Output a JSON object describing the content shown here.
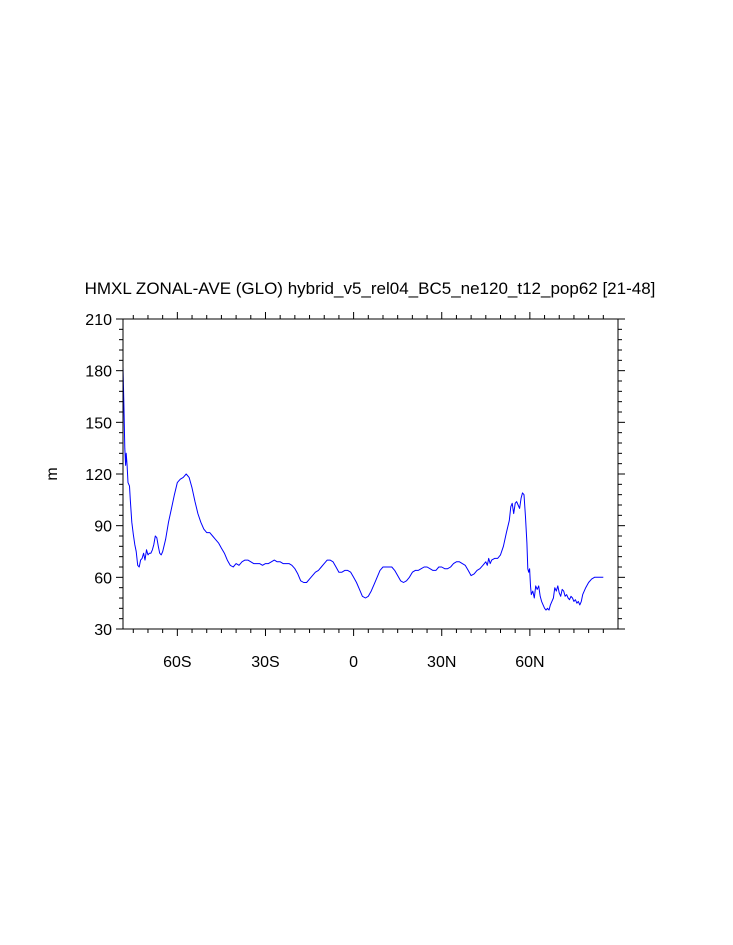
{
  "chart_data": {
    "type": "line",
    "title": "HMXL ZONAL-AVE (GLO) hybrid_v5_rel04_BC5_ne120_t12_pop62 [21-48]",
    "xlabel": "",
    "ylabel": "m",
    "xlim": [
      -78.5,
      90
    ],
    "ylim": [
      30,
      210
    ],
    "x_ticks": [
      {
        "value": -60,
        "label": "60S"
      },
      {
        "value": -30,
        "label": "30S"
      },
      {
        "value": 0,
        "label": "0"
      },
      {
        "value": 30,
        "label": "30N"
      },
      {
        "value": 60,
        "label": "60N"
      }
    ],
    "y_ticks": [
      {
        "value": 30,
        "label": "30"
      },
      {
        "value": 60,
        "label": "60"
      },
      {
        "value": 90,
        "label": "90"
      },
      {
        "value": 120,
        "label": "120"
      },
      {
        "value": 150,
        "label": "150"
      },
      {
        "value": 180,
        "label": "180"
      },
      {
        "value": 210,
        "label": "210"
      }
    ],
    "grid": false,
    "legend": "none",
    "series_color": "#0000ff",
    "series": [
      {
        "points": [
          [
            -78.5,
            182
          ],
          [
            -78.2,
            160
          ],
          [
            -77.9,
            135
          ],
          [
            -77.6,
            125
          ],
          [
            -77.4,
            132
          ],
          [
            -77.1,
            125
          ],
          [
            -76.8,
            115
          ],
          [
            -76.3,
            113
          ],
          [
            -76,
            105
          ],
          [
            -75.5,
            92
          ],
          [
            -75,
            85
          ],
          [
            -74.5,
            79
          ],
          [
            -74,
            75
          ],
          [
            -73.5,
            67
          ],
          [
            -73,
            66
          ],
          [
            -72.5,
            70
          ],
          [
            -72,
            71
          ],
          [
            -71.5,
            74
          ],
          [
            -71,
            70
          ],
          [
            -70.5,
            76
          ],
          [
            -70,
            73
          ],
          [
            -69.5,
            74
          ],
          [
            -69,
            74
          ],
          [
            -68.5,
            76
          ],
          [
            -68,
            79
          ],
          [
            -67.5,
            84
          ],
          [
            -67,
            83
          ],
          [
            -66.5,
            78
          ],
          [
            -66,
            74
          ],
          [
            -65.5,
            73
          ],
          [
            -65,
            75
          ],
          [
            -64,
            82
          ],
          [
            -63,
            92
          ],
          [
            -62,
            100
          ],
          [
            -61,
            108
          ],
          [
            -60,
            115
          ],
          [
            -59,
            117
          ],
          [
            -58,
            118
          ],
          [
            -57,
            120
          ],
          [
            -56,
            118
          ],
          [
            -55,
            112
          ],
          [
            -54,
            104
          ],
          [
            -53,
            97
          ],
          [
            -52,
            92
          ],
          [
            -51,
            88
          ],
          [
            -50,
            86
          ],
          [
            -49,
            86
          ],
          [
            -48,
            84
          ],
          [
            -47,
            82
          ],
          [
            -46,
            80
          ],
          [
            -45,
            77
          ],
          [
            -44,
            74
          ],
          [
            -43,
            70
          ],
          [
            -42,
            67
          ],
          [
            -41,
            66
          ],
          [
            -40,
            68
          ],
          [
            -39,
            67
          ],
          [
            -38,
            69
          ],
          [
            -37,
            70
          ],
          [
            -36,
            70
          ],
          [
            -35,
            69
          ],
          [
            -34,
            68
          ],
          [
            -33,
            68
          ],
          [
            -32,
            68
          ],
          [
            -31,
            67
          ],
          [
            -30,
            68
          ],
          [
            -29,
            68
          ],
          [
            -28,
            69
          ],
          [
            -27,
            70
          ],
          [
            -26,
            69
          ],
          [
            -25,
            69
          ],
          [
            -24,
            68
          ],
          [
            -23,
            68
          ],
          [
            -22,
            68
          ],
          [
            -21,
            67
          ],
          [
            -20,
            65
          ],
          [
            -19,
            62
          ],
          [
            -18,
            58
          ],
          [
            -17,
            57
          ],
          [
            -16,
            57
          ],
          [
            -15,
            59
          ],
          [
            -14,
            61
          ],
          [
            -13,
            63
          ],
          [
            -12,
            64
          ],
          [
            -11,
            66
          ],
          [
            -10,
            68
          ],
          [
            -9,
            70
          ],
          [
            -8,
            70
          ],
          [
            -7,
            69
          ],
          [
            -6,
            66
          ],
          [
            -5,
            63
          ],
          [
            -4,
            63
          ],
          [
            -3,
            64
          ],
          [
            -2,
            64
          ],
          [
            -1,
            63
          ],
          [
            0,
            60
          ],
          [
            1,
            57
          ],
          [
            2,
            53
          ],
          [
            3,
            49
          ],
          [
            4,
            48
          ],
          [
            5,
            49
          ],
          [
            6,
            52
          ],
          [
            7,
            56
          ],
          [
            8,
            60
          ],
          [
            9,
            64
          ],
          [
            10,
            66
          ],
          [
            11,
            66
          ],
          [
            12,
            66
          ],
          [
            13,
            66
          ],
          [
            14,
            64
          ],
          [
            15,
            61
          ],
          [
            16,
            58
          ],
          [
            17,
            57
          ],
          [
            18,
            58
          ],
          [
            19,
            60
          ],
          [
            20,
            63
          ],
          [
            21,
            64
          ],
          [
            22,
            64
          ],
          [
            23,
            65
          ],
          [
            24,
            66
          ],
          [
            25,
            66
          ],
          [
            26,
            65
          ],
          [
            27,
            64
          ],
          [
            28,
            64
          ],
          [
            29,
            66
          ],
          [
            30,
            66
          ],
          [
            31,
            65
          ],
          [
            32,
            65
          ],
          [
            33,
            66
          ],
          [
            34,
            68
          ],
          [
            35,
            69
          ],
          [
            36,
            69
          ],
          [
            37,
            68
          ],
          [
            38,
            67
          ],
          [
            39,
            64
          ],
          [
            40,
            61
          ],
          [
            41,
            62
          ],
          [
            42,
            64
          ],
          [
            43,
            65
          ],
          [
            44,
            67
          ],
          [
            45,
            69
          ],
          [
            45.5,
            67
          ],
          [
            46,
            71
          ],
          [
            46.5,
            68
          ],
          [
            47,
            70
          ],
          [
            48,
            71
          ],
          [
            49,
            71
          ],
          [
            50,
            73
          ],
          [
            51,
            78
          ],
          [
            52,
            86
          ],
          [
            53,
            93
          ],
          [
            53.5,
            101
          ],
          [
            54,
            103
          ],
          [
            54.5,
            97
          ],
          [
            55,
            103
          ],
          [
            55.5,
            104
          ],
          [
            56,
            102
          ],
          [
            56.5,
            100
          ],
          [
            57,
            106
          ],
          [
            57.5,
            109
          ],
          [
            58,
            108
          ],
          [
            58.5,
            95
          ],
          [
            59,
            80
          ],
          [
            59.3,
            65
          ],
          [
            59.6,
            63
          ],
          [
            59.9,
            65
          ],
          [
            60.2,
            55
          ],
          [
            60.5,
            50
          ],
          [
            61,
            52
          ],
          [
            61.5,
            48
          ],
          [
            62,
            55
          ],
          [
            62.5,
            53
          ],
          [
            63,
            55
          ],
          [
            63.5,
            49
          ],
          [
            64,
            46
          ],
          [
            64.5,
            44
          ],
          [
            65,
            42
          ],
          [
            65.5,
            41
          ],
          [
            66,
            42
          ],
          [
            66.5,
            41
          ],
          [
            67,
            44
          ],
          [
            67.5,
            46
          ],
          [
            68,
            48
          ],
          [
            68.5,
            54
          ],
          [
            69,
            52
          ],
          [
            69.5,
            55
          ],
          [
            70,
            51
          ],
          [
            70.5,
            49
          ],
          [
            71,
            53
          ],
          [
            71.5,
            52
          ],
          [
            72,
            49
          ],
          [
            72.5,
            50
          ],
          [
            73,
            48
          ],
          [
            73.5,
            47
          ],
          [
            74,
            49
          ],
          [
            74.5,
            48
          ],
          [
            75,
            46
          ],
          [
            75.5,
            47
          ],
          [
            76,
            45
          ],
          [
            76.5,
            46
          ],
          [
            77,
            44
          ],
          [
            77.5,
            46
          ],
          [
            78,
            50
          ],
          [
            79,
            54
          ],
          [
            80,
            57
          ],
          [
            81,
            59
          ],
          [
            82,
            60
          ],
          [
            83,
            60
          ],
          [
            84,
            60
          ],
          [
            85,
            60
          ]
        ]
      }
    ]
  }
}
